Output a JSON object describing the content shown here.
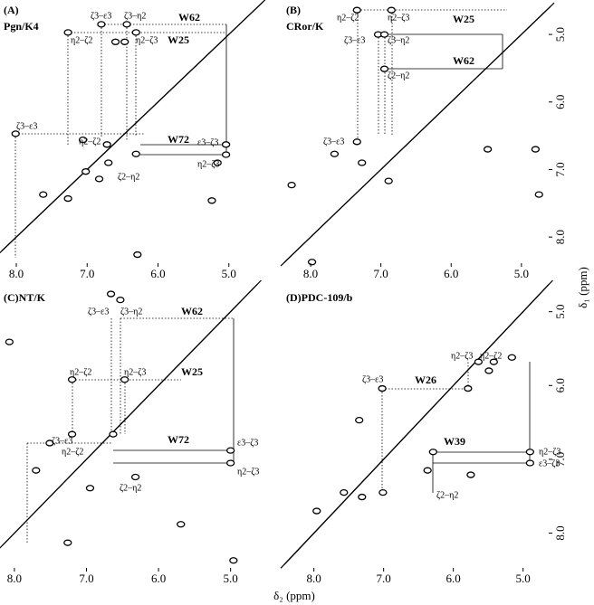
{
  "figure": {
    "x_label": "δ₂ (ppm)",
    "y_label": "δ₁ (ppm)"
  },
  "chart_data": [
    {
      "type": "nmr",
      "label": "(A)",
      "sample": "Pgn/K4",
      "xlim": [
        8.23,
        4.46
      ],
      "ylim": [
        4.49,
        8.44
      ],
      "xticks": [
        {
          "value": 8,
          "label": "8.0"
        },
        {
          "value": 7,
          "label": "7.0"
        },
        {
          "value": 6,
          "label": "6.0"
        },
        {
          "value": 5,
          "label": "5.0"
        }
      ],
      "annotations": [
        "ζ3–ε3",
        "ζ3–η2",
        "W62",
        "η2–ζ2",
        "η2–ζ3",
        "W25",
        "ζ3–ε3",
        "η2–ζ2",
        "W72",
        "ε3–ζ3",
        "η2–ζ3",
        "ζ2–η2"
      ],
      "x": [
        6.8,
        6.44,
        7.27,
        6.31,
        6.6,
        6.47,
        8.01,
        5.04,
        5.04,
        7.06,
        6.72,
        6.7,
        7.02,
        6.83,
        6.31,
        7.62,
        7.27,
        5.24,
        5.16,
        6.29
      ],
      "y": [
        4.85,
        4.85,
        4.97,
        4.97,
        5.11,
        5.11,
        6.47,
        6.63,
        6.78,
        6.56,
        6.63,
        6.9,
        7.03,
        7.14,
        6.77,
        7.37,
        7.43,
        7.46,
        6.9,
        8.26
      ]
    },
    {
      "type": "nmr",
      "label": "(B)",
      "sample": "CRor/K",
      "xlim": [
        8.4,
        4.56
      ],
      "ylim": [
        4.49,
        8.44
      ],
      "xticks": [
        {
          "value": 8,
          "label": "8.0"
        },
        {
          "value": 7,
          "label": "7.0"
        },
        {
          "value": 6,
          "label": "6.0"
        },
        {
          "value": 5,
          "label": "5.0"
        }
      ],
      "yticks": [
        {
          "value": 5,
          "label": "5.0"
        },
        {
          "value": 6,
          "label": "6.0"
        },
        {
          "value": 7,
          "label": "7.0"
        },
        {
          "value": 8,
          "label": "8.0"
        }
      ],
      "annotations": [
        "η2–ζ2",
        "η2–ζ3",
        "W25",
        "ζ3–ε3",
        "ζ3–η2",
        "W62",
        "ζ2–η2",
        "ζ3–ε3"
      ],
      "x": [
        7.34,
        6.85,
        7.04,
        6.95,
        6.95,
        7.34,
        7.66,
        7.27,
        6.89,
        8.27,
        5.48,
        4.8,
        4.75,
        7.98
      ],
      "y": [
        4.64,
        4.64,
        5.0,
        5.0,
        5.51,
        6.59,
        6.77,
        6.9,
        7.17,
        7.23,
        6.7,
        6.7,
        7.37,
        8.37
      ]
    },
    {
      "type": "nmr",
      "label": "(C)NT/K",
      "xlim": [
        8.2,
        4.43
      ],
      "ylim": [
        4.6,
        8.52
      ],
      "xticks": [
        {
          "value": 8,
          "label": "8.0"
        },
        {
          "value": 7,
          "label": "7.0"
        },
        {
          "value": 6,
          "label": "6.0"
        },
        {
          "value": 5,
          "label": "5.0"
        }
      ],
      "annotations": [
        "ζ3–ε3",
        "ζ3–η2",
        "W62",
        "η2–ζ2",
        "η2–ζ3",
        "W25",
        "ζ3–ε3",
        "η2–ζ2",
        "W72",
        "ε3–ζ3",
        "η2–ζ3",
        "ζ2–η2"
      ],
      "x": [
        6.66,
        6.53,
        7.2,
        6.47,
        7.2,
        6.63,
        5.0,
        5.0,
        7.51,
        7.7,
        6.95,
        8.07,
        7.26,
        4.96,
        5.69,
        6.32
      ],
      "y": [
        4.76,
        4.84,
        5.92,
        5.92,
        6.66,
        6.66,
        6.88,
        7.05,
        6.78,
        7.15,
        7.39,
        5.41,
        8.13,
        8.37,
        7.88,
        7.24
      ]
    },
    {
      "type": "nmr",
      "label": "(D)PDC-109/b",
      "xlim": [
        8.45,
        4.58
      ],
      "ylim": [
        4.6,
        8.52
      ],
      "xticks": [
        {
          "value": 8,
          "label": "8.0"
        },
        {
          "value": 7,
          "label": "7.0"
        },
        {
          "value": 6,
          "label": "6.0"
        },
        {
          "value": 5,
          "label": "5.0"
        }
      ],
      "yticks": [
        {
          "value": 5,
          "label": "5.0"
        },
        {
          "value": 6,
          "label": "6.0"
        },
        {
          "value": 7,
          "label": "7.0"
        },
        {
          "value": 8,
          "label": "8.0"
        }
      ],
      "annotations": [
        "η2–ζ3",
        "η2–ζ2",
        "ζ3–ε3",
        "W26",
        "W39",
        "η2–ζ3",
        "ε3–ζ3",
        "ζ2–η2"
      ],
      "x": [
        7.02,
        5.79,
        5.64,
        5.42,
        5.49,
        5.16,
        6.29,
        6.37,
        7.01,
        7.57,
        7.31,
        7.96,
        5.75,
        7.35,
        4.9,
        4.9
      ],
      "y": [
        6.04,
        6.04,
        5.68,
        5.68,
        5.8,
        5.62,
        6.9,
        7.15,
        7.45,
        7.45,
        7.51,
        7.7,
        7.21,
        6.47,
        6.9,
        7.05
      ]
    }
  ]
}
